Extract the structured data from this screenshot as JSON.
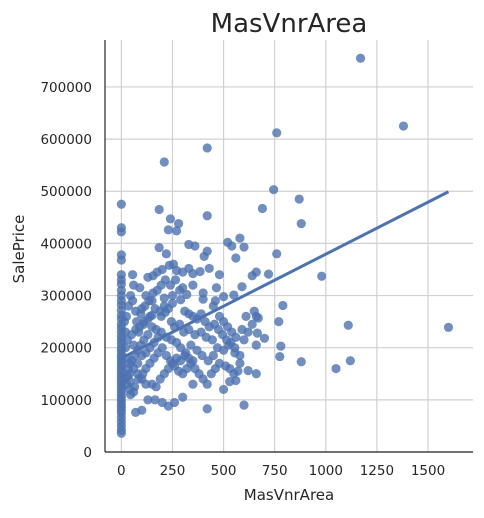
{
  "chart_data": {
    "type": "scatter",
    "title": "MasVnrArea",
    "xlabel": "MasVnrArea",
    "ylabel": "SalePrice",
    "xlim": [
      -80,
      1720
    ],
    "ylim": [
      0,
      790000
    ],
    "xticks": [
      0,
      250,
      500,
      750,
      1000,
      1250,
      1500
    ],
    "yticks": [
      0,
      100000,
      200000,
      300000,
      400000,
      500000,
      600000,
      700000
    ],
    "grid": true,
    "legend": "none",
    "marker_color": "#4c72b0",
    "line_color": "#4c72b0",
    "regression_line": {
      "x": [
        0,
        1600
      ],
      "y": [
        180000,
        499000
      ]
    },
    "points": [
      [
        1170,
        755000
      ],
      [
        760,
        612000
      ],
      [
        420,
        583000
      ],
      [
        1380,
        625000
      ],
      [
        210,
        556000
      ],
      [
        0,
        475000
      ],
      [
        0,
        430000
      ],
      [
        0,
        422000
      ],
      [
        0,
        378000
      ],
      [
        0,
        368000
      ],
      [
        0,
        340000
      ],
      [
        0,
        330000
      ],
      [
        0,
        322000
      ],
      [
        0,
        310000
      ],
      [
        0,
        300000
      ],
      [
        0,
        290000
      ],
      [
        0,
        282000
      ],
      [
        0,
        272000
      ],
      [
        0,
        262000
      ],
      [
        0,
        255000
      ],
      [
        0,
        245000
      ],
      [
        0,
        238000
      ],
      [
        0,
        230000
      ],
      [
        0,
        222000
      ],
      [
        0,
        215000
      ],
      [
        0,
        208000
      ],
      [
        0,
        200000
      ],
      [
        0,
        195000
      ],
      [
        0,
        188000
      ],
      [
        0,
        182000
      ],
      [
        0,
        176000
      ],
      [
        0,
        170000
      ],
      [
        0,
        164000
      ],
      [
        0,
        158000
      ],
      [
        0,
        152000
      ],
      [
        0,
        146000
      ],
      [
        0,
        140000
      ],
      [
        0,
        134000
      ],
      [
        0,
        128000
      ],
      [
        0,
        122000
      ],
      [
        0,
        116000
      ],
      [
        0,
        110000
      ],
      [
        0,
        104000
      ],
      [
        0,
        98000
      ],
      [
        0,
        92000
      ],
      [
        0,
        86000
      ],
      [
        0,
        80000
      ],
      [
        0,
        74000
      ],
      [
        0,
        66000
      ],
      [
        0,
        58000
      ],
      [
        0,
        50000
      ],
      [
        0,
        42000
      ],
      [
        0,
        36000
      ],
      [
        745,
        503000
      ],
      [
        870,
        485000
      ],
      [
        880,
        438000
      ],
      [
        690,
        467000
      ],
      [
        185,
        465000
      ],
      [
        240,
        447000
      ],
      [
        280,
        438000
      ],
      [
        420,
        453000
      ],
      [
        230,
        426000
      ],
      [
        270,
        424000
      ],
      [
        185,
        392000
      ],
      [
        220,
        380000
      ],
      [
        330,
        398000
      ],
      [
        360,
        395000
      ],
      [
        520,
        402000
      ],
      [
        580,
        410000
      ],
      [
        540,
        395000
      ],
      [
        600,
        393000
      ],
      [
        420,
        385000
      ],
      [
        560,
        372000
      ],
      [
        760,
        380000
      ],
      [
        640,
        338000
      ],
      [
        660,
        345000
      ],
      [
        720,
        341000
      ],
      [
        980,
        337000
      ],
      [
        790,
        281000
      ],
      [
        590,
        317000
      ],
      [
        550,
        301000
      ],
      [
        500,
        298000
      ],
      [
        460,
        290000
      ],
      [
        400,
        293000
      ],
      [
        320,
        302000
      ],
      [
        290,
        292000
      ],
      [
        250,
        285000
      ],
      [
        210,
        295000
      ],
      [
        150,
        290000
      ],
      [
        120,
        300000
      ],
      [
        100,
        275000
      ],
      [
        70,
        270000
      ],
      [
        55,
        340000
      ],
      [
        90,
        315000
      ],
      [
        60,
        320000
      ],
      [
        130,
        335000
      ],
      [
        155,
        338000
      ],
      [
        175,
        345000
      ],
      [
        200,
        350000
      ],
      [
        235,
        358000
      ],
      [
        255,
        360000
      ],
      [
        270,
        348000
      ],
      [
        300,
        345000
      ],
      [
        330,
        352000
      ],
      [
        350,
        342000
      ],
      [
        385,
        346000
      ],
      [
        405,
        375000
      ],
      [
        430,
        352000
      ],
      [
        465,
        315000
      ],
      [
        480,
        340000
      ],
      [
        650,
        270000
      ],
      [
        660,
        260000
      ],
      [
        670,
        257000
      ],
      [
        665,
        228000
      ],
      [
        620,
        230000
      ],
      [
        600,
        215000
      ],
      [
        660,
        205000
      ],
      [
        700,
        218000
      ],
      [
        770,
        250000
      ],
      [
        780,
        203000
      ],
      [
        775,
        183000
      ],
      [
        880,
        173000
      ],
      [
        1050,
        160000
      ],
      [
        1120,
        175000
      ],
      [
        1110,
        243000
      ],
      [
        1600,
        239000
      ],
      [
        620,
        156000
      ],
      [
        660,
        150000
      ],
      [
        580,
        170000
      ],
      [
        560,
        137000
      ],
      [
        530,
        135000
      ],
      [
        500,
        120000
      ],
      [
        600,
        90000
      ],
      [
        420,
        83000
      ],
      [
        350,
        130000
      ],
      [
        300,
        105000
      ],
      [
        260,
        95000
      ],
      [
        230,
        88000
      ],
      [
        200,
        95000
      ],
      [
        165,
        100000
      ],
      [
        130,
        100000
      ],
      [
        100,
        80000
      ],
      [
        70,
        76000
      ],
      [
        45,
        110000
      ],
      [
        40,
        170000
      ],
      [
        60,
        205000
      ],
      [
        85,
        230000
      ],
      [
        110,
        245000
      ],
      [
        140,
        260000
      ],
      [
        165,
        275000
      ],
      [
        195,
        260000
      ],
      [
        215,
        268000
      ],
      [
        245,
        250000
      ],
      [
        260,
        240000
      ],
      [
        285,
        245000
      ],
      [
        305,
        230000
      ],
      [
        330,
        235000
      ],
      [
        360,
        225000
      ],
      [
        390,
        230000
      ],
      [
        415,
        220000
      ],
      [
        445,
        215000
      ],
      [
        470,
        200000
      ],
      [
        500,
        195000
      ],
      [
        525,
        205000
      ],
      [
        555,
        190000
      ],
      [
        580,
        185000
      ],
      [
        450,
        185000
      ],
      [
        425,
        175000
      ],
      [
        395,
        185000
      ],
      [
        370,
        195000
      ],
      [
        340,
        205000
      ],
      [
        315,
        190000
      ],
      [
        290,
        200000
      ],
      [
        270,
        210000
      ],
      [
        245,
        215000
      ],
      [
        220,
        220000
      ],
      [
        195,
        230000
      ],
      [
        170,
        235000
      ],
      [
        150,
        240000
      ],
      [
        130,
        225000
      ],
      [
        110,
        215000
      ],
      [
        95,
        205000
      ],
      [
        80,
        195000
      ],
      [
        65,
        185000
      ],
      [
        50,
        175000
      ],
      [
        35,
        160000
      ],
      [
        30,
        145000
      ],
      [
        45,
        135000
      ],
      [
        65,
        125000
      ],
      [
        85,
        140000
      ],
      [
        105,
        150000
      ],
      [
        120,
        160000
      ],
      [
        140,
        170000
      ],
      [
        160,
        180000
      ],
      [
        180,
        190000
      ],
      [
        200,
        200000
      ],
      [
        220,
        185000
      ],
      [
        240,
        175000
      ],
      [
        260,
        165000
      ],
      [
        280,
        155000
      ],
      [
        300,
        150000
      ],
      [
        320,
        160000
      ],
      [
        340,
        170000
      ],
      [
        360,
        160000
      ],
      [
        380,
        150000
      ],
      [
        400,
        140000
      ],
      [
        420,
        130000
      ],
      [
        440,
        150000
      ],
      [
        460,
        160000
      ],
      [
        480,
        170000
      ],
      [
        510,
        165000
      ],
      [
        530,
        160000
      ],
      [
        550,
        150000
      ],
      [
        570,
        155000
      ],
      [
        150,
        130000
      ],
      [
        170,
        125000
      ],
      [
        190,
        140000
      ],
      [
        210,
        150000
      ],
      [
        230,
        160000
      ],
      [
        250,
        170000
      ],
      [
        270,
        180000
      ],
      [
        290,
        175000
      ],
      [
        310,
        185000
      ],
      [
        330,
        180000
      ],
      [
        350,
        175000
      ],
      [
        120,
        190000
      ],
      [
        100,
        185000
      ],
      [
        80,
        170000
      ],
      [
        60,
        160000
      ],
      [
        40,
        150000
      ],
      [
        25,
        180000
      ],
      [
        20,
        200000
      ],
      [
        30,
        215000
      ],
      [
        50,
        225000
      ],
      [
        70,
        235000
      ],
      [
        90,
        240000
      ],
      [
        110,
        250000
      ],
      [
        130,
        255000
      ],
      [
        150,
        262000
      ],
      [
        190,
        270000
      ],
      [
        210,
        280000
      ],
      [
        230,
        275000
      ],
      [
        250,
        300000
      ],
      [
        300,
        315000
      ],
      [
        350,
        320000
      ],
      [
        400,
        305000
      ],
      [
        450,
        280000
      ],
      [
        480,
        260000
      ],
      [
        500,
        250000
      ],
      [
        520,
        240000
      ],
      [
        540,
        230000
      ],
      [
        560,
        220000
      ],
      [
        590,
        235000
      ],
      [
        610,
        260000
      ],
      [
        640,
        245000
      ],
      [
        180,
        220000
      ],
      [
        160,
        210000
      ],
      [
        140,
        200000
      ],
      [
        120,
        130000
      ],
      [
        100,
        140000
      ],
      [
        80,
        150000
      ],
      [
        60,
        115000
      ],
      [
        40,
        120000
      ],
      [
        25,
        130000
      ],
      [
        15,
        140000
      ],
      [
        15,
        250000
      ],
      [
        20,
        230000
      ],
      [
        25,
        260000
      ],
      [
        35,
        280000
      ],
      [
        45,
        300000
      ],
      [
        55,
        290000
      ],
      [
        75,
        250000
      ],
      [
        95,
        265000
      ],
      [
        115,
        280000
      ],
      [
        135,
        290000
      ],
      [
        155,
        305000
      ],
      [
        175,
        310000
      ],
      [
        195,
        320000
      ],
      [
        215,
        330000
      ],
      [
        240,
        320000
      ],
      [
        265,
        330000
      ],
      [
        285,
        310000
      ],
      [
        310,
        270000
      ],
      [
        330,
        265000
      ],
      [
        350,
        260000
      ],
      [
        370,
        255000
      ],
      [
        390,
        265000
      ],
      [
        410,
        250000
      ],
      [
        430,
        240000
      ],
      [
        455,
        245000
      ],
      [
        475,
        235000
      ],
      [
        495,
        225000
      ],
      [
        515,
        215000
      ],
      [
        535,
        210000
      ],
      [
        555,
        200000
      ]
    ]
  }
}
